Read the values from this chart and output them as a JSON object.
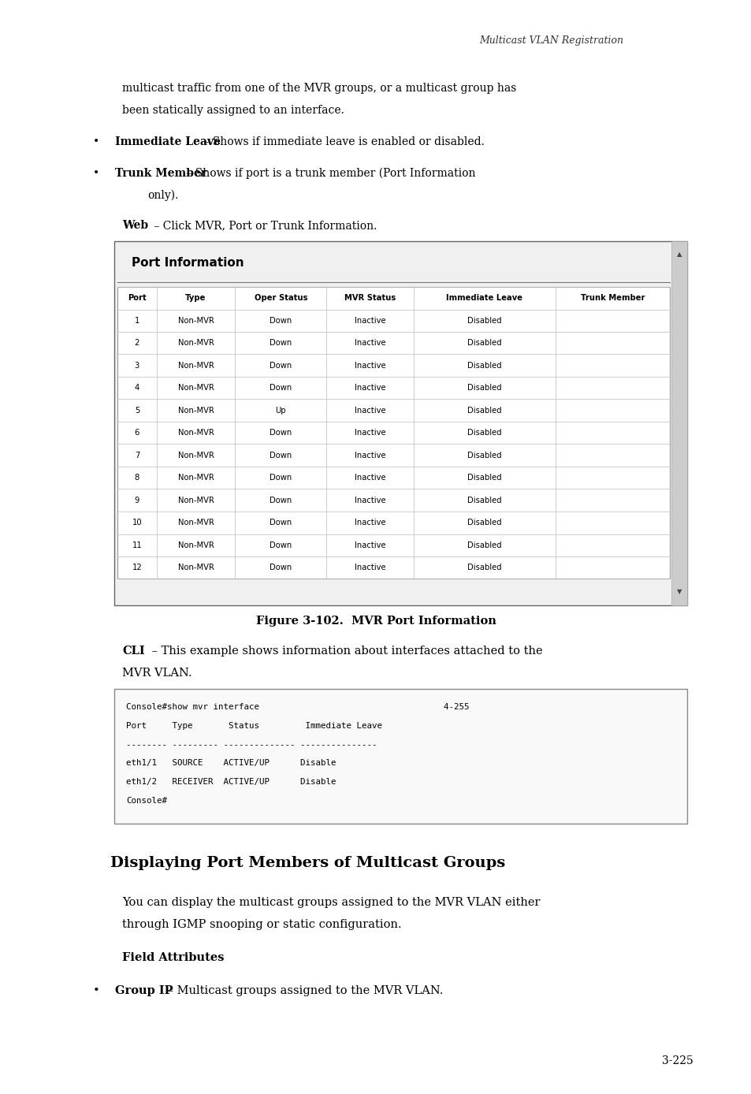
{
  "page_width": 9.54,
  "page_height": 13.88,
  "background_color": "#ffffff",
  "header_text": "Multicast VLAN Registration",
  "body_text_1": "multicast traffic from one of the MVR groups, or a multicast group has",
  "body_text_2": "been statically assigned to an interface.",
  "bullet1_bold": "Immediate Leave",
  "bullet1_rest": " – Shows if immediate leave is enabled or disabled.",
  "bullet2_bold": "Trunk Member",
  "bullet2_rest": " – Shows if port is a trunk member (Port Information",
  "bullet2_rest2": "only).",
  "web_bold": "Web",
  "web_rest": " – Click MVR, Port or Trunk Information.",
  "table_title": "Port Information",
  "table_headers": [
    "Port",
    "Type",
    "Oper Status",
    "MVR Status",
    "Immediate Leave",
    "Trunk Member"
  ],
  "table_rows": [
    [
      "1",
      "Non-MVR",
      "Down",
      "Inactive",
      "Disabled",
      ""
    ],
    [
      "2",
      "Non-MVR",
      "Down",
      "Inactive",
      "Disabled",
      ""
    ],
    [
      "3",
      "Non-MVR",
      "Down",
      "Inactive",
      "Disabled",
      ""
    ],
    [
      "4",
      "Non-MVR",
      "Down",
      "Inactive",
      "Disabled",
      ""
    ],
    [
      "5",
      "Non-MVR",
      "Up",
      "Inactive",
      "Disabled",
      ""
    ],
    [
      "6",
      "Non-MVR",
      "Down",
      "Inactive",
      "Disabled",
      ""
    ],
    [
      "7",
      "Non-MVR",
      "Down",
      "Inactive",
      "Disabled",
      ""
    ],
    [
      "8",
      "Non-MVR",
      "Down",
      "Inactive",
      "Disabled",
      ""
    ],
    [
      "9",
      "Non-MVR",
      "Down",
      "Inactive",
      "Disabled",
      ""
    ],
    [
      "10",
      "Non-MVR",
      "Down",
      "Inactive",
      "Disabled",
      ""
    ],
    [
      "11",
      "Non-MVR",
      "Down",
      "Inactive",
      "Disabled",
      ""
    ],
    [
      "12",
      "Non-MVR",
      "Down",
      "Inactive",
      "Disabled",
      ""
    ]
  ],
  "figure_caption": "Figure 3-102.  MVR Port Information",
  "cli_bold": "CLI",
  "cli_rest": " – This example shows information about interfaces attached to the",
  "cli_rest2": "MVR VLAN.",
  "console_lines": [
    "Console#show mvr interface                                    4-255",
    "Port     Type       Status         Immediate Leave",
    "-------- --------- -------------- ---------------",
    "eth1/1   SOURCE    ACTIVE/UP      Disable",
    "eth1/2   RECEIVER  ACTIVE/UP      Disable",
    "Console#"
  ],
  "section_title": "Displaying Port Members of Multicast Groups",
  "section_body1": "You can display the multicast groups assigned to the MVR VLAN either",
  "section_body2": "through IGMP snooping or static configuration.",
  "field_attr_title": "Field Attributes",
  "field_bullet_bold": "Group IP",
  "field_bullet_rest": " – Multicast groups assigned to the MVR VLAN.",
  "page_number": "3-225"
}
